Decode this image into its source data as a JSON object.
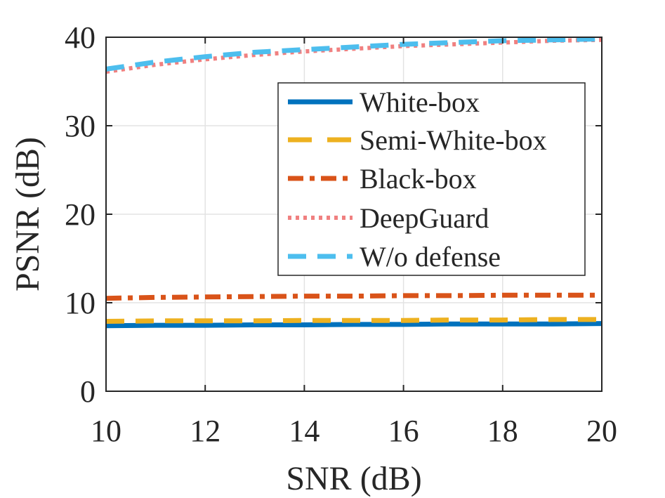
{
  "chart_data": {
    "type": "line",
    "xlabel": "SNR (dB)",
    "ylabel": "PSNR (dB)",
    "xlim": [
      10,
      20
    ],
    "ylim": [
      0,
      40
    ],
    "xticks": [
      "10",
      "12",
      "14",
      "16",
      "18",
      "20"
    ],
    "yticks": [
      "0",
      "10",
      "20",
      "30",
      "40"
    ],
    "grid": true,
    "legend_position": "center-right",
    "x": [
      10,
      11,
      12,
      13,
      14,
      15,
      16,
      17,
      18,
      19,
      20
    ],
    "series": [
      {
        "name": "White-box",
        "color": "#0072BD",
        "style": "solid",
        "values": [
          7.4,
          7.45,
          7.45,
          7.5,
          7.5,
          7.55,
          7.55,
          7.6,
          7.6,
          7.6,
          7.65
        ]
      },
      {
        "name": "Semi-White-box",
        "color": "#EDB120",
        "style": "dashed",
        "values": [
          7.9,
          7.95,
          7.95,
          7.95,
          8.0,
          8.0,
          8.0,
          8.05,
          8.05,
          8.1,
          8.1
        ]
      },
      {
        "name": "Black-box",
        "color": "#D95319",
        "style": "dashdot",
        "values": [
          10.5,
          10.6,
          10.65,
          10.7,
          10.75,
          10.75,
          10.8,
          10.8,
          10.85,
          10.85,
          10.85
        ]
      },
      {
        "name": "DeepGuard",
        "color": "#F08080",
        "style": "dotted",
        "values": [
          36.1,
          36.9,
          37.5,
          38.0,
          38.4,
          38.7,
          39.0,
          39.2,
          39.4,
          39.6,
          39.7
        ]
      },
      {
        "name": "W/o defense",
        "color": "#4DBEEE",
        "style": "dashed",
        "values": [
          36.4,
          37.2,
          37.8,
          38.3,
          38.6,
          38.9,
          39.2,
          39.4,
          39.6,
          39.7,
          39.8
        ]
      }
    ]
  }
}
